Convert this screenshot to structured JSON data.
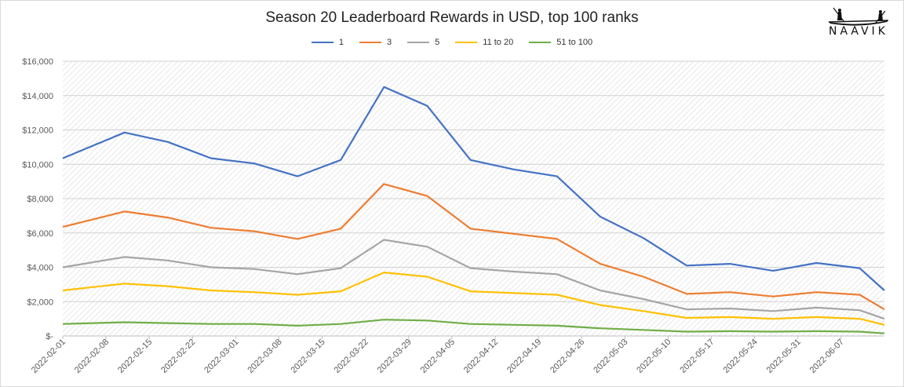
{
  "chart_data": {
    "type": "line",
    "title": "Season 20 Leaderboard Rewards in USD, top 100 ranks",
    "xlabel": "",
    "ylabel": "",
    "ylim": [
      0,
      16000
    ],
    "y_ticks": [
      "$-",
      "$2,000",
      "$4,000",
      "$6,000",
      "$8,000",
      "$10,000",
      "$12,000",
      "$14,000",
      "$16,000"
    ],
    "x_tick_labels": [
      "2022-02-01",
      "2022-02-08",
      "2022-02-15",
      "2022-02-22",
      "2022-03-01",
      "2022-03-08",
      "2022-03-15",
      "2022-03-22",
      "2022-03-29",
      "2022-04-05",
      "2022-04-12",
      "2022-04-19",
      "2022-04-26",
      "2022-05-03",
      "2022-05-10",
      "2022-05-17",
      "2022-05-24",
      "2022-05-31",
      "2022-06-07"
    ],
    "x": [
      "2022-02-01",
      "2022-02-11",
      "2022-02-18",
      "2022-02-25",
      "2022-03-04",
      "2022-03-11",
      "2022-03-18",
      "2022-03-25",
      "2022-04-01",
      "2022-04-08",
      "2022-04-15",
      "2022-04-22",
      "2022-04-29",
      "2022-05-06",
      "2022-05-13",
      "2022-05-20",
      "2022-05-27",
      "2022-06-03",
      "2022-06-10",
      "2022-06-14"
    ],
    "series": [
      {
        "name": "1",
        "color": "#4472C4",
        "values": [
          10350,
          11850,
          11300,
          10350,
          10050,
          9300,
          10250,
          14500,
          13400,
          10250,
          9700,
          9300,
          6950,
          5700,
          4100,
          4200,
          3800,
          4250,
          3950,
          2650
        ]
      },
      {
        "name": "3",
        "color": "#ED7D31",
        "values": [
          6350,
          7250,
          6900,
          6300,
          6100,
          5650,
          6250,
          8850,
          8150,
          6250,
          5950,
          5650,
          4200,
          3450,
          2450,
          2550,
          2300,
          2550,
          2400,
          1550
        ]
      },
      {
        "name": "5",
        "color": "#A5A5A5",
        "values": [
          4000,
          4600,
          4400,
          4000,
          3900,
          3600,
          3950,
          5600,
          5200,
          3950,
          3750,
          3600,
          2650,
          2150,
          1550,
          1600,
          1450,
          1650,
          1500,
          1000
        ]
      },
      {
        "name": "11 to 20",
        "color": "#FFC000",
        "values": [
          2650,
          3050,
          2900,
          2650,
          2550,
          2400,
          2600,
          3700,
          3450,
          2600,
          2500,
          2400,
          1800,
          1450,
          1050,
          1100,
          1000,
          1100,
          1000,
          650
        ]
      },
      {
        "name": "51 to 100",
        "color": "#70AD47",
        "values": [
          700,
          800,
          750,
          700,
          700,
          600,
          700,
          950,
          900,
          700,
          650,
          600,
          450,
          350,
          250,
          280,
          250,
          280,
          250,
          150
        ]
      }
    ],
    "grid": true,
    "legend_position": "top"
  },
  "logo": {
    "text": "NAAVIK"
  }
}
